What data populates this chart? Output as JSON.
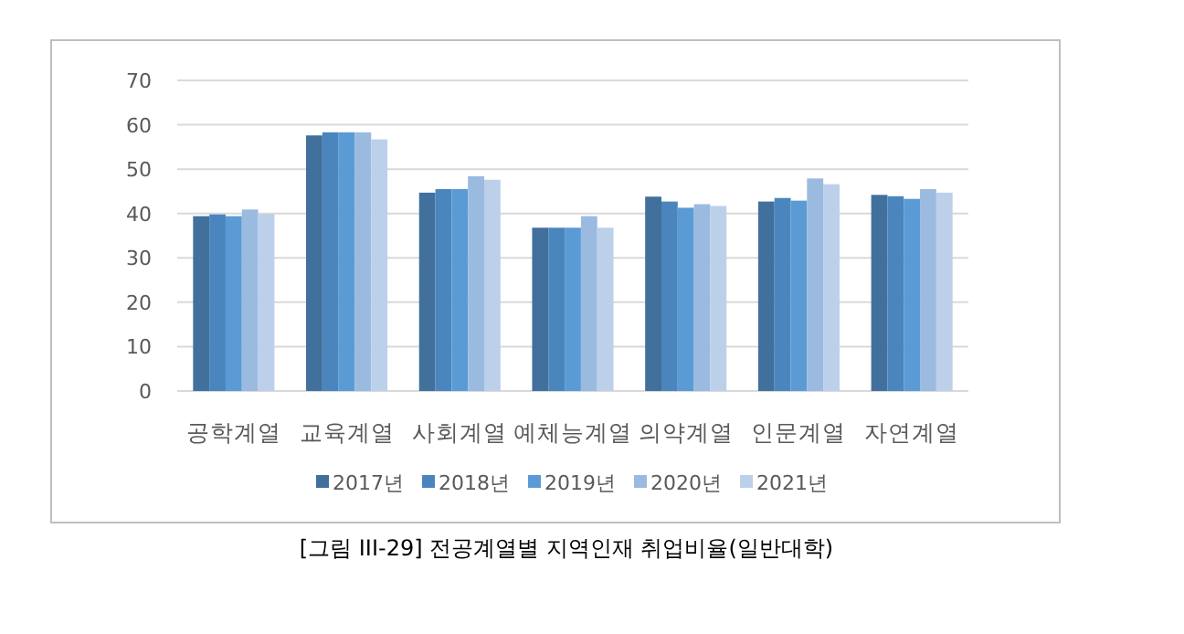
{
  "chart_data": {
    "type": "bar",
    "title": "[그림 III-29] 전공계열별 지역인재 취업비율(일반대학)",
    "categories": [
      "공학계열",
      "교육계열",
      "사회계열",
      "예체능계열",
      "의약계열",
      "인문계열",
      "자연계열"
    ],
    "series": [
      {
        "name": "2017년",
        "color": "#41709c",
        "values": [
          39.4,
          57.6,
          44.7,
          36.8,
          43.8,
          42.7,
          44.2
        ]
      },
      {
        "name": "2018년",
        "color": "#4a86bd",
        "values": [
          39.8,
          58.3,
          45.5,
          36.8,
          42.7,
          43.5,
          43.9
        ]
      },
      {
        "name": "2019년",
        "color": "#5b9bd5",
        "values": [
          39.4,
          58.3,
          45.5,
          36.8,
          41.3,
          42.9,
          43.3
        ]
      },
      {
        "name": "2020년",
        "color": "#9bbae0",
        "values": [
          40.9,
          58.3,
          48.4,
          39.4,
          42.1,
          47.9,
          45.5
        ]
      },
      {
        "name": "2021년",
        "color": "#bdd0ea",
        "values": [
          39.9,
          56.7,
          47.6,
          36.8,
          41.7,
          46.6,
          44.7
        ]
      }
    ],
    "ylim": [
      0,
      70
    ],
    "yticks": [
      0,
      10,
      20,
      30,
      40,
      50,
      60,
      70
    ],
    "grid": "y",
    "legend": "bottom"
  }
}
